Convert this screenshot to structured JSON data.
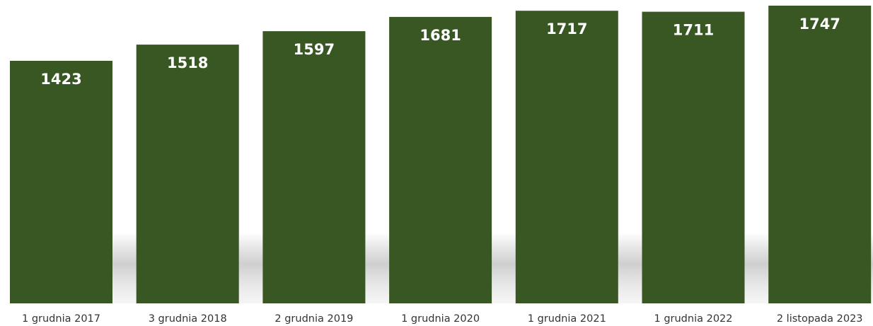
{
  "chart_data": {
    "type": "bar",
    "categories": [
      "1 grudnia 2017",
      "3 grudnia 2018",
      "2 grudnia 2019",
      "1 grudnia 2020",
      "1 grudnia 2021",
      "1 grudnia 2022",
      "2 listopada 2023"
    ],
    "values": [
      1423,
      1518,
      1597,
      1681,
      1717,
      1711,
      1747
    ],
    "data_labels": [
      "1423",
      "1518",
      "1597",
      "1681",
      "1717",
      "1711",
      "1747"
    ],
    "title": "",
    "xlabel": "",
    "ylabel": "",
    "ylim": [
      0,
      1780
    ],
    "grid": false,
    "legend": "none",
    "colors": {
      "bar": "#385723",
      "label": "#ffffff",
      "axis_text": "#333333"
    }
  }
}
